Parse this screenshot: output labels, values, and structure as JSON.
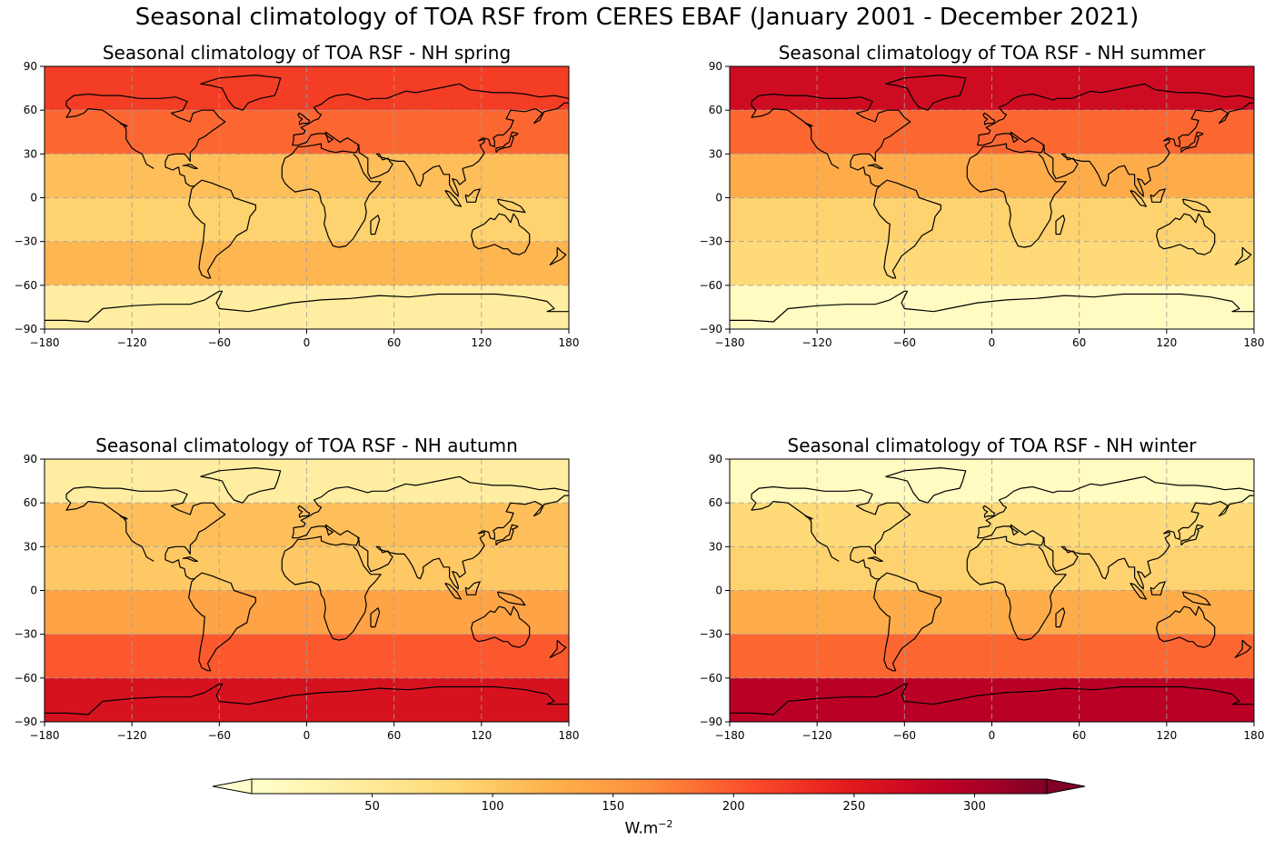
{
  "figure": {
    "title": "Seasonal climatology of TOA RSF from CERES EBAF (January 2001 - December 2021)"
  },
  "chart_data": [
    {
      "type": "heatmap",
      "title": "Seasonal climatology of TOA RSF - NH spring",
      "xlim": [
        -180,
        180
      ],
      "ylim": [
        -90,
        90
      ],
      "xticks": [
        "−180",
        "−120",
        "−60",
        "0",
        "60",
        "120",
        "180"
      ],
      "yticks": [
        "90",
        "60",
        "30",
        "0",
        "−30",
        "−60",
        "−90"
      ],
      "grid": true,
      "zones": [
        {
          "lat": [
            60,
            90
          ],
          "rsf": 220
        },
        {
          "lat": [
            30,
            60
          ],
          "rsf": 190
        },
        {
          "lat": [
            0,
            30
          ],
          "rsf": 110
        },
        {
          "lat": [
            -30,
            0
          ],
          "rsf": 90
        },
        {
          "lat": [
            -60,
            -30
          ],
          "rsf": 120
        },
        {
          "lat": [
            -90,
            -60
          ],
          "rsf": 40
        }
      ]
    },
    {
      "type": "heatmap",
      "title": "Seasonal climatology of TOA RSF - NH summer",
      "xlim": [
        -180,
        180
      ],
      "ylim": [
        -90,
        90
      ],
      "xticks": [
        "−180",
        "−120",
        "−60",
        "0",
        "60",
        "120",
        "180"
      ],
      "yticks": [
        "90",
        "60",
        "30",
        "0",
        "−30",
        "−60",
        "−90"
      ],
      "grid": true,
      "zones": [
        {
          "lat": [
            60,
            90
          ],
          "rsf": 270
        },
        {
          "lat": [
            30,
            60
          ],
          "rsf": 190
        },
        {
          "lat": [
            0,
            30
          ],
          "rsf": 130
        },
        {
          "lat": [
            -30,
            0
          ],
          "rsf": 90
        },
        {
          "lat": [
            -60,
            -30
          ],
          "rsf": 80
        },
        {
          "lat": [
            -90,
            -60
          ],
          "rsf": 10
        }
      ]
    },
    {
      "type": "heatmap",
      "title": "Seasonal climatology of TOA RSF - NH autumn",
      "xlim": [
        -180,
        180
      ],
      "ylim": [
        -90,
        90
      ],
      "xticks": [
        "−180",
        "−120",
        "−60",
        "0",
        "60",
        "120",
        "180"
      ],
      "yticks": [
        "90",
        "60",
        "30",
        "0",
        "−30",
        "−60",
        "−90"
      ],
      "grid": true,
      "zones": [
        {
          "lat": [
            60,
            90
          ],
          "rsf": 40
        },
        {
          "lat": [
            30,
            60
          ],
          "rsf": 110
        },
        {
          "lat": [
            0,
            30
          ],
          "rsf": 100
        },
        {
          "lat": [
            -30,
            0
          ],
          "rsf": 140
        },
        {
          "lat": [
            -60,
            -30
          ],
          "rsf": 200
        },
        {
          "lat": [
            -90,
            -60
          ],
          "rsf": 260
        }
      ]
    },
    {
      "type": "heatmap",
      "title": "Seasonal climatology of TOA RSF - NH winter",
      "xlim": [
        -180,
        180
      ],
      "ylim": [
        -90,
        90
      ],
      "xticks": [
        "−180",
        "−120",
        "−60",
        "0",
        "60",
        "120",
        "180"
      ],
      "yticks": [
        "90",
        "60",
        "30",
        "0",
        "−30",
        "−60",
        "−90"
      ],
      "grid": true,
      "zones": [
        {
          "lat": [
            60,
            90
          ],
          "rsf": 10
        },
        {
          "lat": [
            30,
            60
          ],
          "rsf": 80
        },
        {
          "lat": [
            0,
            30
          ],
          "rsf": 90
        },
        {
          "lat": [
            -30,
            0
          ],
          "rsf": 130
        },
        {
          "lat": [
            -60,
            -30
          ],
          "rsf": 190
        },
        {
          "lat": [
            -90,
            -60
          ],
          "rsf": 290
        }
      ]
    }
  ],
  "colorbar": {
    "colormap": "YlOrRd",
    "range": [
      0,
      330
    ],
    "extend": "both",
    "ticks": [
      "50",
      "100",
      "150",
      "200",
      "250",
      "300"
    ],
    "tick_values": [
      50,
      100,
      150,
      200,
      250,
      300
    ],
    "label": "W.m",
    "label_exponent": "−2"
  }
}
